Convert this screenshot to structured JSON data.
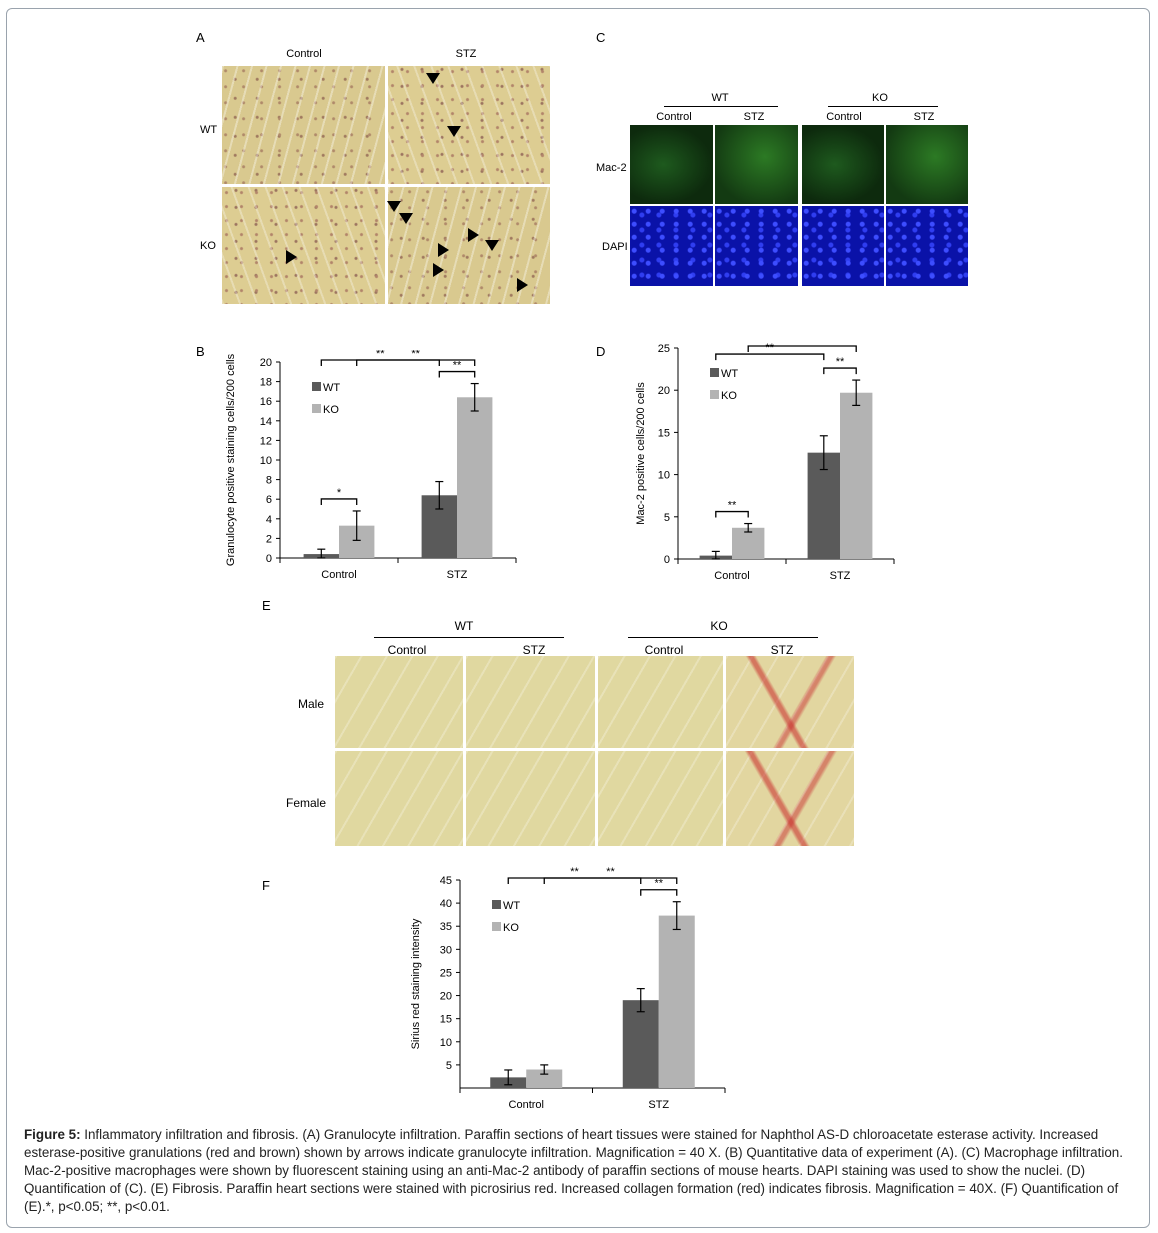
{
  "panels": {
    "A": {
      "label": "A",
      "col_control": "Control",
      "col_stz": "STZ",
      "row_wt": "WT",
      "row_ko": "KO"
    },
    "C": {
      "label": "C",
      "group_wt": "WT",
      "group_ko": "KO",
      "col1": "Control",
      "col2": "STZ",
      "col3": "Control",
      "col4": "STZ",
      "row_mac2": "Mac-2",
      "row_dapi": "DAPI"
    },
    "B": {
      "label": "B"
    },
    "D": {
      "label": "D"
    },
    "E": {
      "label": "E",
      "group_wt": "WT",
      "group_ko": "KO",
      "col1": "Control",
      "col2": "STZ",
      "col3": "Control",
      "col4": "STZ",
      "row_male": "Male",
      "row_female": "Female"
    },
    "F": {
      "label": "F"
    }
  },
  "chart_data": [
    {
      "id": "B",
      "type": "bar",
      "categories": [
        "Control",
        "STZ"
      ],
      "series": [
        {
          "name": "WT",
          "values": [
            0.4,
            6.4
          ],
          "errors": [
            0.5,
            1.4
          ],
          "color": "#5a5a5a"
        },
        {
          "name": "KO",
          "values": [
            3.3,
            16.4
          ],
          "errors": [
            1.5,
            1.4
          ],
          "color": "#b3b3b3"
        }
      ],
      "ylabel": "Granulocyte positive staining cells/200 cells",
      "ylim": [
        0,
        20
      ],
      "yticks": [
        0,
        2,
        4,
        6,
        8,
        10,
        12,
        14,
        16,
        18,
        20
      ],
      "legend": "top-left",
      "significance": [
        {
          "from": "Control.WT",
          "to": "Control.KO",
          "label": "*"
        },
        {
          "from": "Control.WT",
          "to": "STZ.WT",
          "label": "**"
        },
        {
          "from": "STZ.WT",
          "to": "STZ.KO",
          "label": "**"
        },
        {
          "from": "Control.KO",
          "to": "STZ.KO",
          "label": "**"
        }
      ]
    },
    {
      "id": "D",
      "type": "bar",
      "categories": [
        "Control",
        "STZ"
      ],
      "series": [
        {
          "name": "WT",
          "values": [
            0.4,
            12.6
          ],
          "errors": [
            0.5,
            2.0
          ],
          "color": "#5a5a5a"
        },
        {
          "name": "KO",
          "values": [
            3.7,
            19.7
          ],
          "errors": [
            0.5,
            1.5
          ],
          "color": "#b3b3b3"
        }
      ],
      "ylabel": "Mac-2 positive cells/200 cells",
      "ylim": [
        0,
        25
      ],
      "yticks": [
        0,
        5,
        10,
        15,
        20,
        25
      ],
      "legend": "top-left",
      "significance": [
        {
          "from": "Control.WT",
          "to": "Control.KO",
          "label": "**"
        },
        {
          "from": "Control.WT",
          "to": "STZ.WT",
          "label": "**"
        },
        {
          "from": "STZ.WT",
          "to": "STZ.KO",
          "label": "**"
        },
        {
          "from": "Control.KO",
          "to": "STZ.KO",
          "label": "**"
        }
      ]
    },
    {
      "id": "F",
      "type": "bar",
      "categories": [
        "Control",
        "STZ"
      ],
      "series": [
        {
          "name": "WT",
          "values": [
            2.3,
            19.0
          ],
          "errors": [
            1.6,
            2.5
          ],
          "color": "#5a5a5a"
        },
        {
          "name": "KO",
          "values": [
            4.0,
            37.3
          ],
          "errors": [
            1.0,
            3.0
          ],
          "color": "#b3b3b3"
        }
      ],
      "ylabel": "Sirius red staining intensity",
      "ylim": [
        0,
        45
      ],
      "yticks": [
        5,
        10,
        15,
        20,
        25,
        30,
        35,
        40,
        45
      ],
      "legend": "top-left",
      "significance": [
        {
          "from": "Control.WT",
          "to": "STZ.WT",
          "label": "**"
        },
        {
          "from": "STZ.WT",
          "to": "STZ.KO",
          "label": "**"
        },
        {
          "from": "Control.KO",
          "to": "STZ.KO",
          "label": "**"
        }
      ]
    }
  ],
  "caption": {
    "title": "Figure 5:",
    "text": " Inflammatory infiltration and fibrosis. (A) Granulocyte infiltration. Paraffin sections of heart tissues were stained for Naphthol AS-D chloroacetate esterase activity. Increased esterase-positive granulations (red and brown) shown by arrows indicate granulocyte infiltration. Magnification = 40 X. (B) Quantitative data of experiment (A). (C) Macrophage infiltration. Mac-2-positive macrophages were shown by fluorescent staining using an anti-Mac-2 antibody of paraffin sections of mouse hearts. DAPI staining was used to show the nuclei. (D) Quantification of (C). (E) Fibrosis. Paraffin heart sections were stained with picrosirius red.  Increased collagen formation (red) indicates fibrosis. Magnification = 40X. (F) Quantification of (E).*, p<0.05; **, p<0.01."
  }
}
